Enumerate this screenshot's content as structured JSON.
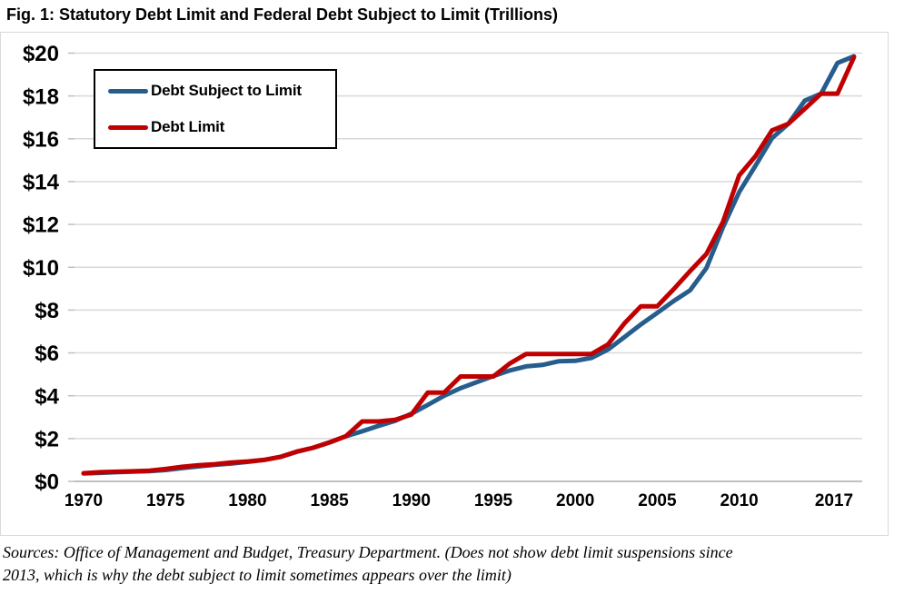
{
  "title": "Fig. 1: Statutory Debt Limit and Federal Debt Subject to Limit (Trillions)",
  "source_note": {
    "line1": "Sources: Office of Management and Budget, Treasury Department. (Does not show debt limit suspensions since",
    "line2": "2013, which is why the debt subject to limit sometimes appears over the limit)"
  },
  "colors": {
    "debt_subject_line": "#265D8D",
    "debt_limit_line": "#C00000",
    "gridline": "#D9D9D9",
    "axis_line": "#ABABAB",
    "tick_mark": "#BFBFBF",
    "chart_border": "#D9D9D9",
    "text": "#000000",
    "background": "#FFFFFF"
  },
  "legend": {
    "items": [
      {
        "label": "Debt Subject to Limit",
        "color": "#265D8D"
      },
      {
        "label": "Debt Limit",
        "color": "#C00000"
      }
    ]
  },
  "chart_data": {
    "type": "line",
    "title": "Fig. 1: Statutory Debt Limit and Federal Debt Subject to Limit (Trillions)",
    "units": "trillions of dollars",
    "x": [
      1970,
      1971,
      1972,
      1973,
      1974,
      1975,
      1976,
      1977,
      1978,
      1979,
      1980,
      1981,
      1982,
      1983,
      1984,
      1985,
      1986,
      1987,
      1988,
      1989,
      1990,
      1991,
      1992,
      1993,
      1994,
      1995,
      1996,
      1997,
      1998,
      1999,
      2000,
      2001,
      2002,
      2003,
      2004,
      2005,
      2006,
      2007,
      2008,
      2009,
      2010,
      2011,
      2012,
      2013,
      2014,
      2015,
      2016,
      2017
    ],
    "series": [
      {
        "name": "Debt Subject to Limit",
        "color": "#265D8D",
        "values": [
          0.37,
          0.4,
          0.43,
          0.46,
          0.48,
          0.53,
          0.62,
          0.7,
          0.77,
          0.83,
          0.91,
          1.0,
          1.14,
          1.38,
          1.57,
          1.82,
          2.11,
          2.34,
          2.59,
          2.83,
          3.16,
          3.57,
          4.0,
          4.35,
          4.64,
          4.92,
          5.18,
          5.37,
          5.44,
          5.61,
          5.63,
          5.77,
          6.16,
          6.74,
          7.33,
          7.87,
          8.42,
          8.92,
          9.96,
          11.85,
          13.51,
          14.75,
          16.03,
          16.7,
          17.78,
          18.11,
          19.54,
          19.85
        ]
      },
      {
        "name": "Debt Limit",
        "color": "#C00000",
        "values": [
          0.38,
          0.43,
          0.45,
          0.47,
          0.5,
          0.58,
          0.68,
          0.75,
          0.8,
          0.88,
          0.93,
          1.0,
          1.14,
          1.39,
          1.57,
          1.82,
          2.11,
          2.8,
          2.8,
          2.87,
          3.12,
          4.15,
          4.15,
          4.9,
          4.9,
          4.9,
          5.5,
          5.95,
          5.95,
          5.95,
          5.95,
          5.95,
          6.4,
          7.38,
          8.18,
          8.18,
          8.97,
          9.82,
          10.62,
          12.1,
          14.29,
          15.19,
          16.39,
          16.7,
          17.4,
          18.11,
          18.11,
          19.81
        ]
      }
    ],
    "ylim": [
      0,
      20
    ],
    "ytick_labels": [
      "$0",
      "$2",
      "$4",
      "$6",
      "$8",
      "$10",
      "$12",
      "$14",
      "$16",
      "$18",
      "$20"
    ],
    "ytick_values": [
      0,
      2,
      4,
      6,
      8,
      10,
      12,
      14,
      16,
      18,
      20
    ],
    "xtick_labels": [
      "1970",
      "1975",
      "1980",
      "1985",
      "1990",
      "1995",
      "2000",
      "2005",
      "2010",
      "2017"
    ],
    "grid": "horizontal",
    "legend_position": "top-left"
  }
}
